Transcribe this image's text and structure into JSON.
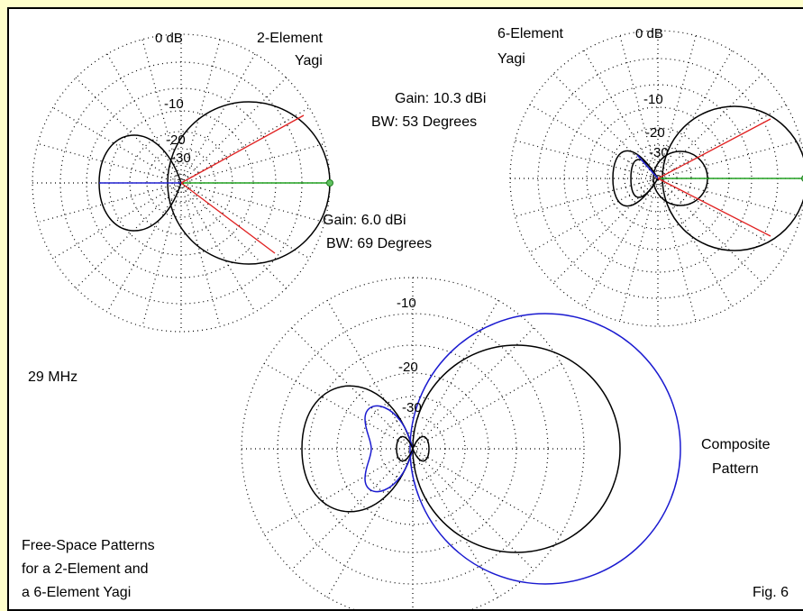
{
  "figure": {
    "colors": {
      "background": "#ffffcc",
      "border": "#000000",
      "pattern": "#000000",
      "composite_6el": "#1a1ad0",
      "beamwidth_lines": "#e02020",
      "forward_axis": "#20a020",
      "rear_axis": "#2020d0"
    },
    "plot_left": {
      "ring_0db": "0 dB",
      "ring_10": "-10",
      "ring_20": "-20",
      "ring_30": "-30",
      "title_line1": "2-Element",
      "title_line2": "Yagi",
      "gain": "Gain: 6.0 dBi",
      "beamwidth": "BW: 69 Degrees"
    },
    "plot_right": {
      "ring_0db": "0 dB",
      "ring_10": "-10",
      "ring_20": "-20",
      "ring_30": "-30",
      "title_line1": "6-Element",
      "title_line2": "Yagi",
      "gain": "Gain: 10.3 dBi",
      "beamwidth": "BW: 53 Degrees"
    },
    "plot_composite": {
      "ring_10": "-10",
      "ring_20": "-20",
      "ring_30": "-30",
      "title_line1": "Composite",
      "title_line2": "Pattern"
    },
    "frequency": "29 MHz",
    "caption_line1": "Free-Space Patterns",
    "caption_line2": "for a 2-Element and",
    "caption_line3": "a 6-Element Yagi",
    "fig_label": "Fig. 6"
  }
}
